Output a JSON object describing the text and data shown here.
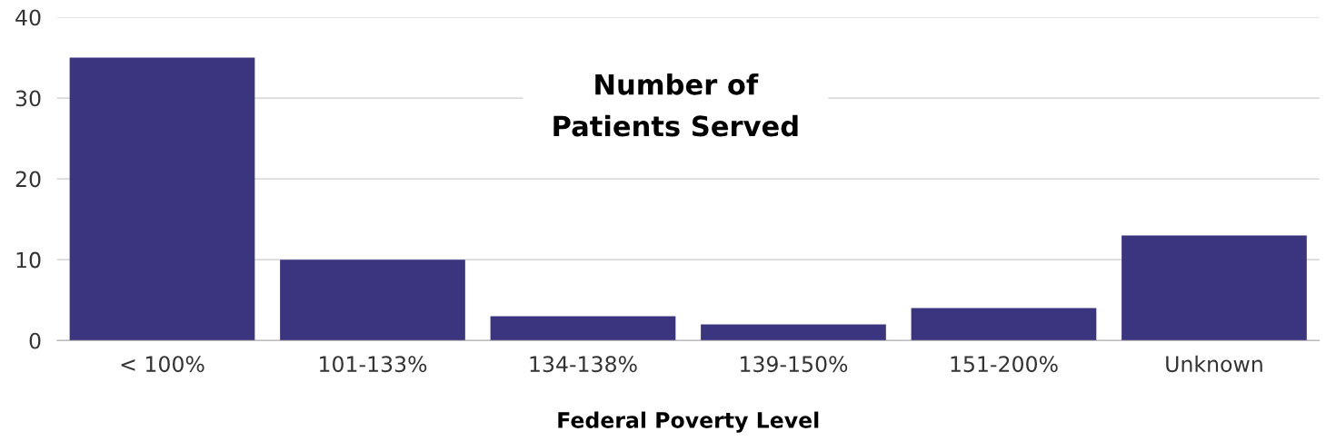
{
  "chart_data": {
    "type": "bar",
    "title": "Number of\nPatients Served",
    "xlabel": "Federal Poverty Level",
    "categories": [
      "< 100%",
      "101-133%",
      "134-138%",
      "139-150%",
      "151-200%",
      "Unknown"
    ],
    "values": [
      35,
      10,
      3,
      2,
      4,
      13
    ],
    "color": "#3b3580",
    "ylim": [
      0,
      40
    ],
    "yticks": [
      0,
      10,
      20,
      30,
      40
    ],
    "grid": "y",
    "legend": false
  }
}
